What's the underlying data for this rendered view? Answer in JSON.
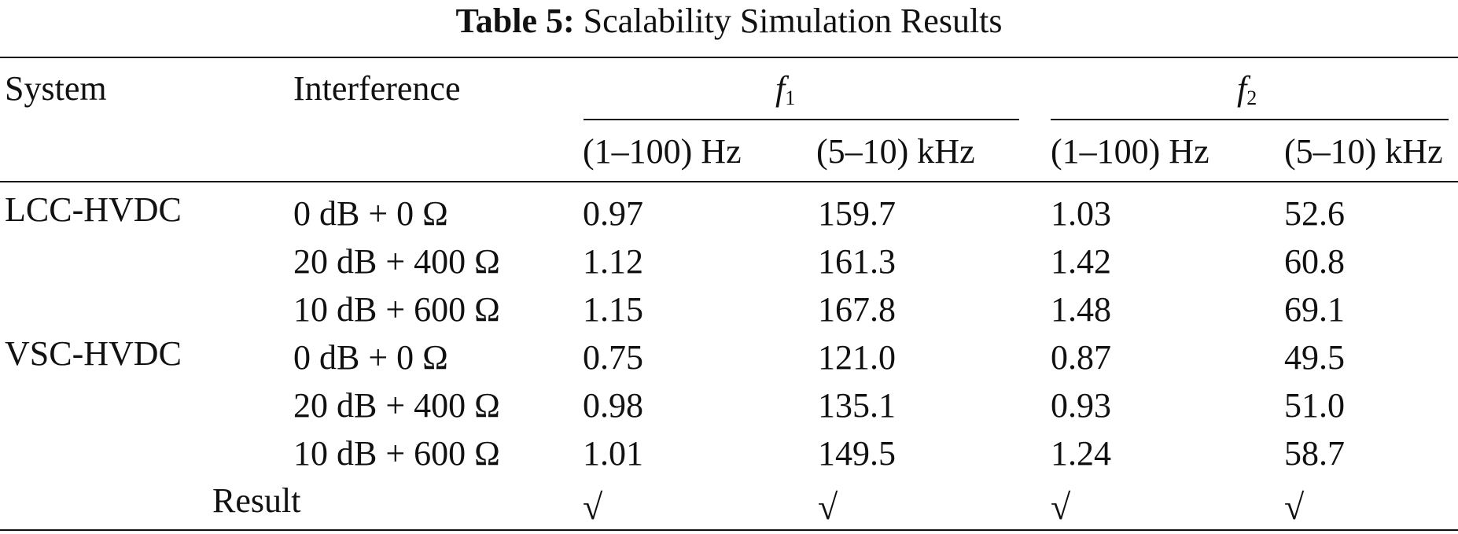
{
  "caption": {
    "label": "Table 5:",
    "text": "Scalability Simulation Results"
  },
  "headers": {
    "system": "System",
    "interference": "Interference",
    "f1": {
      "symbol": "f",
      "subscript": "1"
    },
    "f2": {
      "symbol": "f",
      "subscript": "2"
    },
    "sub_columns": [
      "(1–100) Hz",
      "(5–10) kHz",
      "(1–100) Hz",
      "(5–10) kHz"
    ]
  },
  "groups": [
    {
      "system": "LCC-HVDC",
      "rows": [
        {
          "interference": "0  dB + 0 Ω",
          "values": [
            "0.97",
            "159.7",
            "1.03",
            "52.6"
          ]
        },
        {
          "interference": "20  dB + 400 Ω",
          "values": [
            "1.12",
            "161.3",
            "1.42",
            "60.8"
          ]
        },
        {
          "interference": "10  dB + 600 Ω",
          "values": [
            "1.15",
            "167.8",
            "1.48",
            "69.1"
          ]
        }
      ]
    },
    {
      "system": "VSC-HVDC",
      "rows": [
        {
          "interference": "0  dB + 0 Ω",
          "values": [
            "0.75",
            "121.0",
            "0.87",
            "49.5"
          ]
        },
        {
          "interference": "20  dB + 400 Ω",
          "values": [
            "0.98",
            "135.1",
            "0.93",
            "51.0"
          ]
        },
        {
          "interference": "10  dB + 600 Ω",
          "values": [
            "1.01",
            "149.5",
            "1.24",
            "58.7"
          ]
        }
      ]
    }
  ],
  "result": {
    "label": "Result",
    "marks": [
      "√",
      "√",
      "√",
      "√"
    ]
  }
}
